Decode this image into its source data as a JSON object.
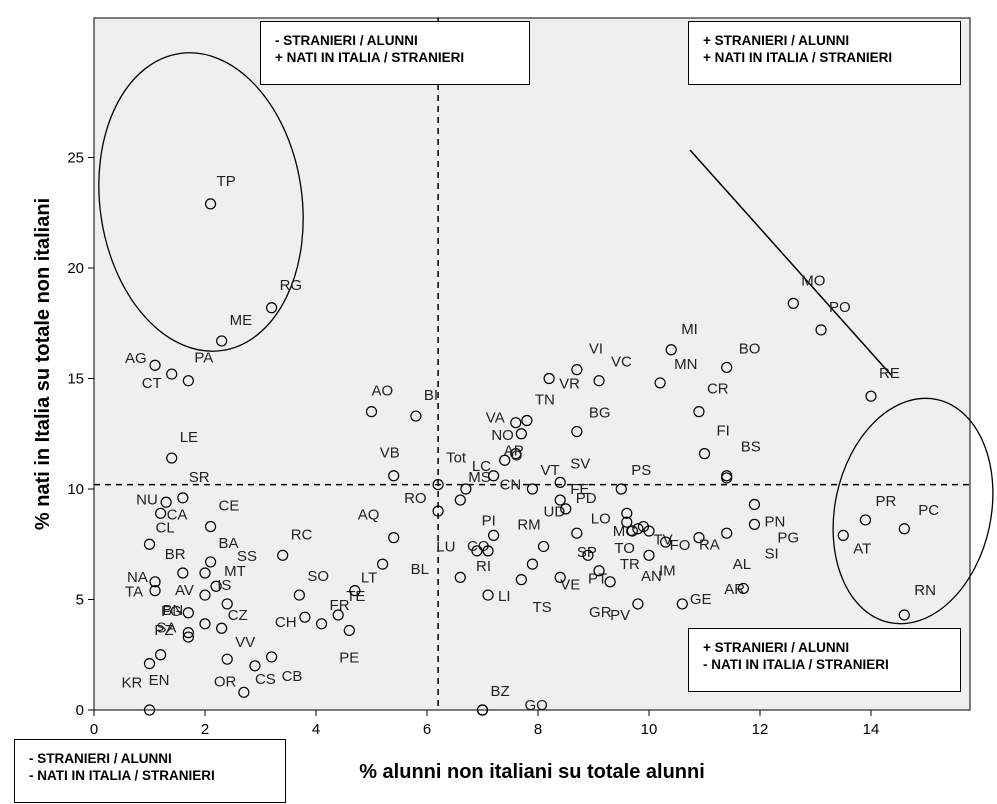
{
  "chart_data": {
    "type": "scatter",
    "xlabel": "% alunni non italiani su totale alunni",
    "ylabel": "% nati in Italia su totale non italiani",
    "xlim": [
      0,
      15.8
    ],
    "ylim": [
      0,
      25.3
    ],
    "x_ticks": [
      "0",
      "2",
      "4",
      "6",
      "8",
      "10",
      "12",
      "14"
    ],
    "y_ticks": [
      "0",
      "5",
      "10",
      "15",
      "20",
      "25"
    ],
    "reference_lines": {
      "x": 6.2,
      "y": 10.2
    },
    "points": [
      {
        "label": "TP",
        "x": 2.1,
        "y": 22.9
      },
      {
        "label": "RG",
        "x": 3.2,
        "y": 18.2
      },
      {
        "label": "ME",
        "x": 2.3,
        "y": 16.7
      },
      {
        "label": "AG",
        "x": 1.1,
        "y": 15.6
      },
      {
        "label": "CT",
        "x": 1.4,
        "y": 15.2
      },
      {
        "label": "PA",
        "x": 1.7,
        "y": 14.9
      },
      {
        "label": "LE",
        "x": 1.4,
        "y": 11.4
      },
      {
        "label": "SR",
        "x": 1.6,
        "y": 9.6
      },
      {
        "label": "NU",
        "x": 1.3,
        "y": 9.4
      },
      {
        "label": "CA",
        "x": 1.2,
        "y": 8.9
      },
      {
        "label": "CE",
        "x": 2.1,
        "y": 8.3
      },
      {
        "label": "CL",
        "x": 1.0,
        "y": 7.5
      },
      {
        "label": "BA",
        "x": 2.1,
        "y": 6.7
      },
      {
        "label": "BR",
        "x": 1.6,
        "y": 6.2
      },
      {
        "label": "SS",
        "x": 2.0,
        "y": 6.2
      },
      {
        "label": "NA",
        "x": 1.1,
        "y": 5.8
      },
      {
        "label": "TA",
        "x": 1.1,
        "y": 5.4
      },
      {
        "label": "AV",
        "x": 2.0,
        "y": 5.2
      },
      {
        "label": "MT",
        "x": 2.2,
        "y": 5.6
      },
      {
        "label": "BN",
        "x": 1.7,
        "y": 4.4
      },
      {
        "label": "IS",
        "x": 2.4,
        "y": 4.8
      },
      {
        "label": "FG",
        "x": 2.0,
        "y": 3.9
      },
      {
        "label": "SA",
        "x": 1.7,
        "y": 3.5
      },
      {
        "label": "CZ",
        "x": 2.3,
        "y": 3.7
      },
      {
        "label": "PZ",
        "x": 1.7,
        "y": 3.3
      },
      {
        "label": "EN",
        "x": 1.2,
        "y": 2.5
      },
      {
        "label": "VV",
        "x": 2.4,
        "y": 2.3
      },
      {
        "label": "KR",
        "x": 1.0,
        "y": 2.1
      },
      {
        "label": "CS",
        "x": 2.9,
        "y": 2.0
      },
      {
        "label": "CB",
        "x": 3.2,
        "y": 2.4
      },
      {
        "label": "OR",
        "x": 2.7,
        "y": 0.8
      },
      {
        "label": "RC",
        "x": 3.4,
        "y": 7.0
      },
      {
        "label": "SO",
        "x": 3.7,
        "y": 5.2
      },
      {
        "label": "CH",
        "x": 3.8,
        "y": 4.2
      },
      {
        "label": "FR",
        "x": 4.1,
        "y": 3.9
      },
      {
        "label": "PE",
        "x": 4.6,
        "y": 3.6
      },
      {
        "label": "TE",
        "x": 4.4,
        "y": 4.3
      },
      {
        "label": "LT",
        "x": 4.7,
        "y": 5.4
      },
      {
        "label": "BL",
        "x": 5.2,
        "y": 6.6
      },
      {
        "label": "AQ",
        "x": 5.4,
        "y": 7.8
      },
      {
        "label": "AO",
        "x": 5.0,
        "y": 13.5
      },
      {
        "label": "BI",
        "x": 5.8,
        "y": 13.3
      },
      {
        "label": "VB",
        "x": 5.4,
        "y": 10.6
      },
      {
        "label": "Tot",
        "x": 6.2,
        "y": 10.2
      },
      {
        "label": "RO",
        "x": 6.2,
        "y": 9.0
      },
      {
        "label": "MS",
        "x": 6.6,
        "y": 9.5
      },
      {
        "label": "LC",
        "x": 6.7,
        "y": 10.0
      },
      {
        "label": "CN",
        "x": 7.2,
        "y": 10.6
      },
      {
        "label": "AP",
        "x": 7.6,
        "y": 11.6
      },
      {
        "label": "O",
        "x": 7.4,
        "y": 11.3
      },
      {
        "label": "VT",
        "x": 7.9,
        "y": 10.0
      },
      {
        "label": "LU",
        "x": 6.6,
        "y": 6.0
      },
      {
        "label": "CO",
        "x": 6.9,
        "y": 7.2
      },
      {
        "label": "RI",
        "x": 7.1,
        "y": 7.2
      },
      {
        "label": "PI",
        "x": 7.2,
        "y": 7.9
      },
      {
        "label": "LI",
        "x": 7.1,
        "y": 5.2
      },
      {
        "label": "RM",
        "x": 7.7,
        "y": 5.9
      },
      {
        "label": "UD",
        "x": 8.1,
        "y": 7.4
      },
      {
        "label": "TS",
        "x": 7.9,
        "y": 6.6
      },
      {
        "label": "VE",
        "x": 8.4,
        "y": 6.0
      },
      {
        "label": "GO",
        "x": 7.0,
        "y": 0.0
      },
      {
        "label": "BZ",
        "x": 7.0,
        "y": 0.0
      },
      {
        "label": "FE",
        "x": 8.4,
        "y": 9.5
      },
      {
        "label": "SV",
        "x": 8.4,
        "y": 10.3
      },
      {
        "label": "PD",
        "x": 8.5,
        "y": 9.1
      },
      {
        "label": "SP",
        "x": 8.7,
        "y": 8.0
      },
      {
        "label": "PT",
        "x": 8.9,
        "y": 7.0
      },
      {
        "label": "GR",
        "x": 9.1,
        "y": 6.3
      },
      {
        "label": "PV",
        "x": 9.3,
        "y": 5.8
      },
      {
        "label": "PS",
        "x": 9.5,
        "y": 10.0
      },
      {
        "label": "LO",
        "x": 9.6,
        "y": 8.9
      },
      {
        "label": "MC",
        "x": 9.6,
        "y": 8.5
      },
      {
        "label": "TO",
        "x": 9.7,
        "y": 8.1
      },
      {
        "label": "TR",
        "x": 9.8,
        "y": 8.2
      },
      {
        "label": "TV",
        "x": 9.9,
        "y": 8.3
      },
      {
        "label": "AN",
        "x": 10.0,
        "y": 8.1
      },
      {
        "label": "IM",
        "x": 10.0,
        "y": 7.0
      },
      {
        "label": "FO",
        "x": 10.3,
        "y": 7.6
      },
      {
        "label": "GE",
        "x": 9.8,
        "y": 4.8
      },
      {
        "label": "RA",
        "x": 10.9,
        "y": 7.8
      },
      {
        "label": "AL",
        "x": 11.4,
        "y": 8.0
      },
      {
        "label": "AR",
        "x": 10.6,
        "y": 4.8
      },
      {
        "label": "SI",
        "x": 11.9,
        "y": 8.4
      },
      {
        "label": "PN",
        "x": 11.9,
        "y": 9.3
      },
      {
        "label": "PG",
        "x": 11.7,
        "y": 5.5
      },
      {
        "label": "FI",
        "x": 11.0,
        "y": 11.6
      },
      {
        "label": "BS",
        "x": 11.4,
        "y": 10.6
      },
      {
        "label": "CR",
        "x": 10.9,
        "y": 13.5
      },
      {
        "label": "BG",
        "x": 8.7,
        "y": 12.6
      },
      {
        "label": "VA",
        "x": 7.6,
        "y": 13.0
      },
      {
        "label": "TN",
        "x": 7.8,
        "y": 13.1
      },
      {
        "label": "NO",
        "x": 7.7,
        "y": 12.5
      },
      {
        "label": "VR",
        "x": 8.2,
        "y": 15.0
      },
      {
        "label": "VI",
        "x": 8.7,
        "y": 15.4
      },
      {
        "label": "VC",
        "x": 9.1,
        "y": 14.9
      },
      {
        "label": "MI",
        "x": 10.4,
        "y": 16.3
      },
      {
        "label": "MN",
        "x": 10.2,
        "y": 14.8
      },
      {
        "label": "BO",
        "x": 11.4,
        "y": 15.5
      },
      {
        "label": "MO",
        "x": 12.6,
        "y": 18.4
      },
      {
        "label": "PO",
        "x": 13.1,
        "y": 17.2
      },
      {
        "label": "RE",
        "x": 14.0,
        "y": 14.2
      },
      {
        "label": "PR",
        "x": 13.9,
        "y": 8.6
      },
      {
        "label": "AT",
        "x": 13.5,
        "y": 7.9
      },
      {
        "label": "PC",
        "x": 14.6,
        "y": 8.2
      },
      {
        "label": "RN",
        "x": 14.6,
        "y": 4.3
      },
      {
        "label": "",
        "x": 1.0,
        "y": 0.0
      },
      {
        "label": "",
        "x": 11.4,
        "y": 10.5
      }
    ]
  },
  "legend_boxes": {
    "top_left": [
      "- STRANIERI / ALUNNI",
      "+ NATI IN ITALIA / STRANIERI"
    ],
    "top_right": [
      "+ STRANIERI / ALUNNI",
      "+ NATI IN ITALIA / STRANIERI"
    ],
    "bottom_right": [
      "+ STRANIERI / ALUNNI",
      "- NATI IN ITALIA / STRANIERI"
    ],
    "bottom_left": [
      "- STRANIERI / ALUNNI",
      "- NATI IN ITALIA / STRANIERI"
    ]
  }
}
